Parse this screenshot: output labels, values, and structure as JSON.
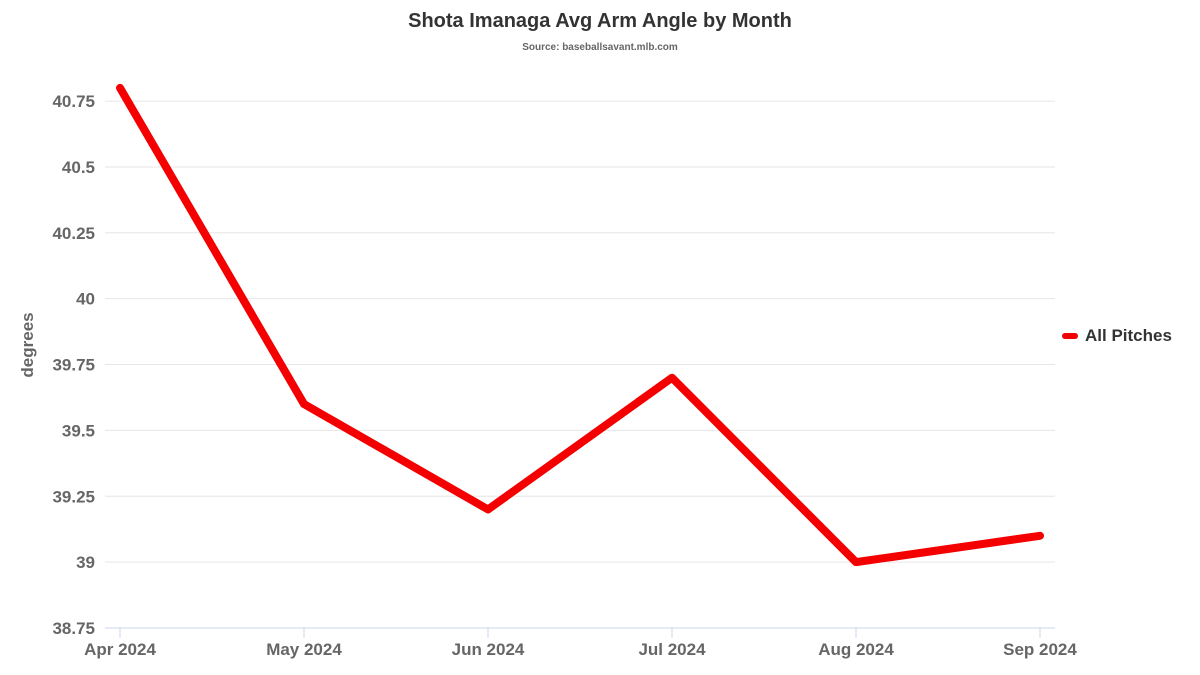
{
  "chart_data": {
    "type": "line",
    "title": "Shota Imanaga Avg Arm Angle by Month",
    "subtitle": "Source: baseballsavant.mlb.com",
    "categories": [
      "Apr 2024",
      "May 2024",
      "Jun 2024",
      "Jul 2024",
      "Aug 2024",
      "Sep 2024"
    ],
    "series": [
      {
        "name": "All Pitches",
        "color": "#f40000",
        "values": [
          40.8,
          39.6,
          39.2,
          39.7,
          39.0,
          39.1
        ]
      }
    ],
    "xlabel": "",
    "ylabel": "degrees",
    "yticks": [
      38.75,
      39,
      39.25,
      39.5,
      39.75,
      40,
      40.25,
      40.5,
      40.75
    ],
    "ylim": [
      38.75,
      40.83
    ],
    "grid": true,
    "legend_position": "right"
  },
  "colors": {
    "series_line": "#f40000",
    "grid_line": "#e6e6e6",
    "axis_line": "#ccd6eb",
    "tick_label": "#666666",
    "title_text": "#333333",
    "subtitle_text": "#666666",
    "legend_text": "#333333"
  }
}
